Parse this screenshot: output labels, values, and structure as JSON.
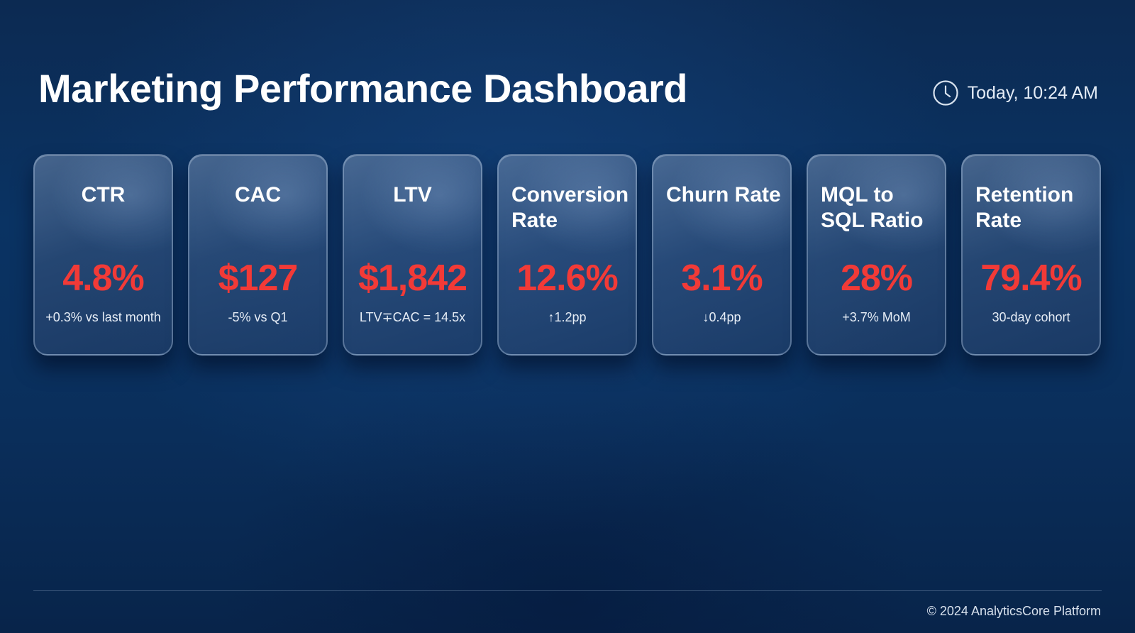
{
  "header": {
    "title": "Marketing Performance Dashboard",
    "timestamp": "Today, 10:24 AM",
    "timestamp_icon": "clock-icon"
  },
  "metrics": [
    {
      "label": "CTR",
      "value": "4.8%",
      "sub": "+0.3% vs last month"
    },
    {
      "label": "CAC",
      "value": "$127",
      "sub": "-5% vs Q1"
    },
    {
      "label": "LTV",
      "value": "$1,842",
      "sub": "LTV∓CAC = 14.5x"
    },
    {
      "label": "Conversion Rate",
      "value": "12.6%",
      "sub": "↑1.2pp"
    },
    {
      "label": "Churn Rate",
      "value": "3.1%",
      "sub": "↓0.4pp"
    },
    {
      "label": "MQL to SQL Ratio",
      "value": "28%",
      "sub": "+3.7% MoM"
    },
    {
      "label": "Retention Rate",
      "value": "79.4%",
      "sub": "30-day cohort"
    }
  ],
  "footer": {
    "copyright": "© 2024 AnalyticsCore Platform"
  },
  "colors": {
    "background": "#0a3363",
    "value_accent": "#f23a37",
    "text": "#ffffff"
  }
}
